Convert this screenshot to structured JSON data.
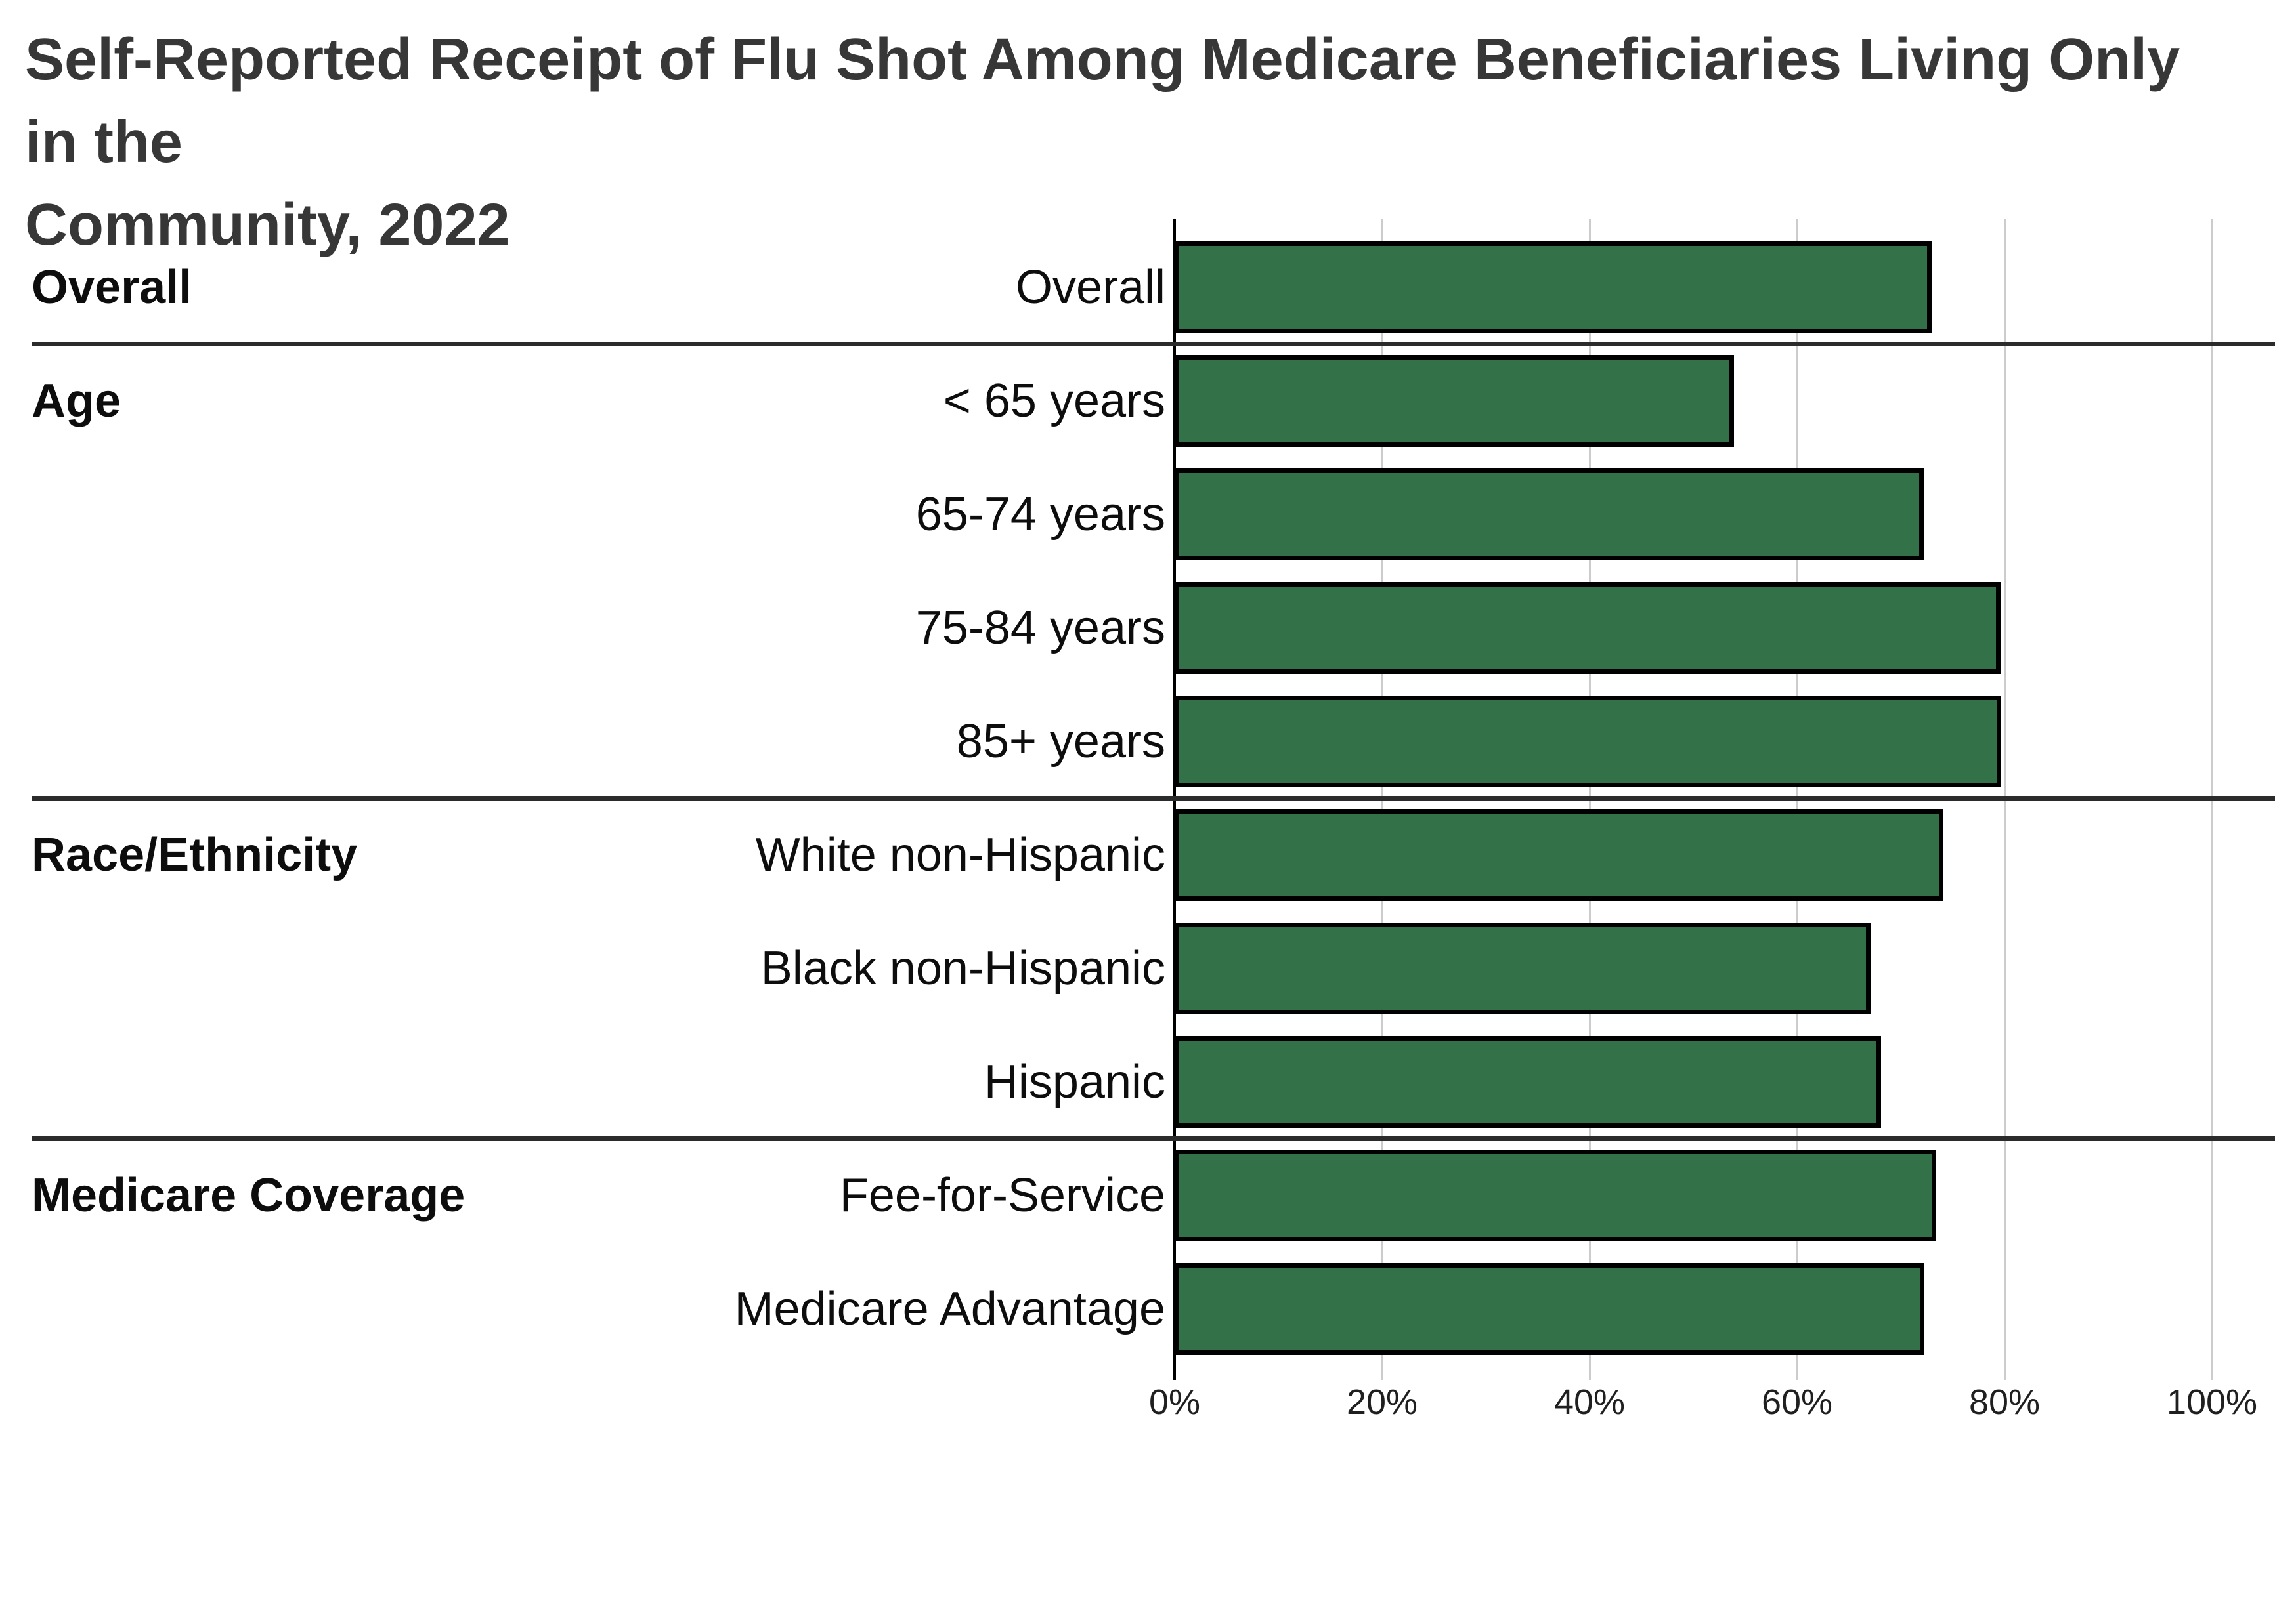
{
  "page": {
    "title_lines": [
      "Self-Reported Receipt of Flu Shot Among Medicare Beneficiaries Living Only in the",
      "Community, 2022"
    ]
  },
  "chart_data": {
    "type": "bar",
    "orientation": "horizontal",
    "title": "Self-Reported Receipt of Flu Shot Among Medicare Beneficiaries Living Only in the Community, 2022",
    "value_unit": "%",
    "xlim": [
      0,
      100
    ],
    "x_ticks": [
      "0%",
      "20%",
      "40%",
      "60%",
      "80%",
      "100%"
    ],
    "grid": true,
    "legend": "none",
    "groups": [
      {
        "label": "Overall",
        "rows": [
          {
            "label": "Overall",
            "value": 73.0
          }
        ]
      },
      {
        "label": "Age",
        "rows": [
          {
            "label": "< 65 years",
            "value": 53.9
          },
          {
            "label": "65-74 years",
            "value": 72.2
          },
          {
            "label": "75-84 years",
            "value": 79.6
          },
          {
            "label": "85+ years",
            "value": 79.7
          }
        ]
      },
      {
        "label": "Race/Ethnicity",
        "rows": [
          {
            "label": "White non-Hispanic",
            "value": 74.1
          },
          {
            "label": "Black non-Hispanic",
            "value": 67.1
          },
          {
            "label": "Hispanic",
            "value": 68.1
          }
        ]
      },
      {
        "label": "Medicare Coverage",
        "rows": [
          {
            "label": "Fee-for-Service",
            "value": 73.4
          },
          {
            "label": "Medicare Advantage",
            "value": 72.3
          }
        ]
      }
    ],
    "colors": {
      "bar_fill": "#337249",
      "bar_border": "#000000",
      "gridline": "#cccccc",
      "axis": "#000000",
      "divider": "#2b2b2b"
    }
  }
}
